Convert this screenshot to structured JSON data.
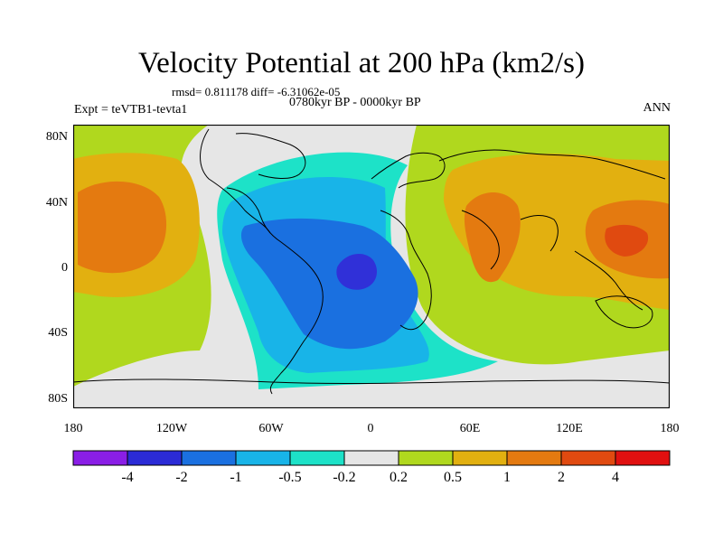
{
  "header": {
    "title": "Velocity Potential at 200 hPa (km2/s)",
    "stats": "rmsd= 0.811178 diff= -6.31062e-05",
    "period": "0780kyr BP - 0000kyr BP",
    "experiment": "Expt = teVTB1-tevta1",
    "season": "ANN"
  },
  "axes": {
    "lat_labels": [
      "80N",
      "40N",
      "0",
      "40S",
      "80S"
    ],
    "lon_labels": [
      "180",
      "120W",
      "60W",
      "0",
      "60E",
      "120E",
      "180"
    ]
  },
  "colorbar": {
    "labels": [
      "-4",
      "-2",
      "-1",
      "-0.5",
      "-0.2",
      "0.2",
      "0.5",
      "1",
      "2",
      "4"
    ],
    "colors": [
      "#8a1ee6",
      "#2b2bd6",
      "#1a70e0",
      "#18b4e8",
      "#1de2c8",
      "#e6e6e6",
      "#b0d81e",
      "#e2b010",
      "#e47a10",
      "#e04a10",
      "#e01010"
    ]
  },
  "palette": {
    "neg4": "#3030d8",
    "neg2": "#1a70e0",
    "neg1": "#18b4e8",
    "neg05": "#1de2c8",
    "neutral": "#e6e6e6",
    "pos02": "#b0d81e",
    "pos05": "#e2b010",
    "pos1": "#e47a10",
    "coast": "#000000"
  }
}
